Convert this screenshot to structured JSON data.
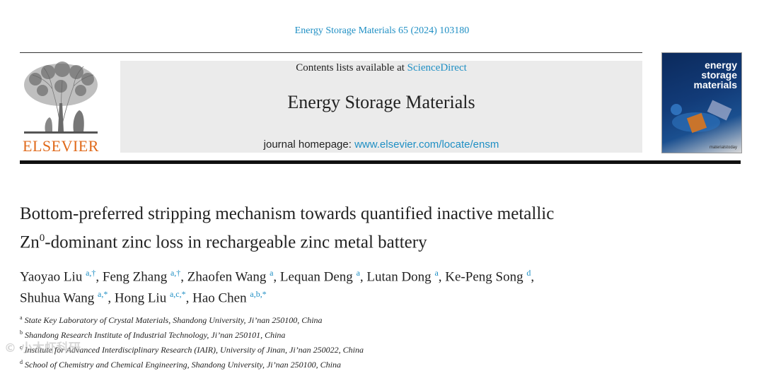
{
  "header": {
    "journal_ref": "Energy Storage Materials 65 (2024) 103180",
    "publisher_logo_text": "ELSEVIER",
    "contents_prefix": "Contents lists available at ",
    "contents_link": "ScienceDirect",
    "journal_name": "Energy Storage Materials",
    "homepage_prefix": "journal homepage: ",
    "homepage_link": "www.elsevier.com/locate/ensm",
    "cover_title_lines": [
      "energy",
      "storage",
      "materials"
    ],
    "cover_footer": "materialstoday"
  },
  "article": {
    "title_line1": "Bottom-preferred stripping mechanism towards quantified inactive metallic",
    "title_line2_prefix": "Zn",
    "title_line2_sup": "0",
    "title_line2_rest": "-dominant zinc loss in rechargeable zinc metal battery",
    "authors": [
      {
        "name": "Yaoyao Liu",
        "sup": "a,†",
        "sep": ", "
      },
      {
        "name": "Feng Zhang",
        "sup": "a,†",
        "sep": ", "
      },
      {
        "name": "Zhaofen Wang",
        "sup": "a",
        "sep": ", "
      },
      {
        "name": "Lequan Deng",
        "sup": "a",
        "sep": ", "
      },
      {
        "name": "Lutan Dong",
        "sup": "a",
        "sep": ", "
      },
      {
        "name": "Ke-Peng Song",
        "sup": "d",
        "sep": ","
      },
      {
        "name": "Shuhua Wang",
        "sup": "a,*",
        "sep": ", "
      },
      {
        "name": "Hong Liu",
        "sup": "a,c,*",
        "sep": ", "
      },
      {
        "name": "Hao Chen",
        "sup": "a,b,*",
        "sep": ""
      }
    ],
    "affiliations": [
      {
        "key": "a",
        "text": "State Key Laboratory of Crystal Materials, Shandong University, Ji’nan 250100, China"
      },
      {
        "key": "b",
        "text": "Shandong Research Institute of Industrial Technology, Ji’nan 250101, China"
      },
      {
        "key": "c",
        "text": "Institute for Advanced Interdisciplinary Research (IAIR), University of Jinan, Ji’nan 250022, China"
      },
      {
        "key": "d",
        "text": "School of Chemistry and Chemical Engineering, Shandong University, Ji’nan 250100, China"
      }
    ]
  },
  "watermark": "© 小木虾科研"
}
